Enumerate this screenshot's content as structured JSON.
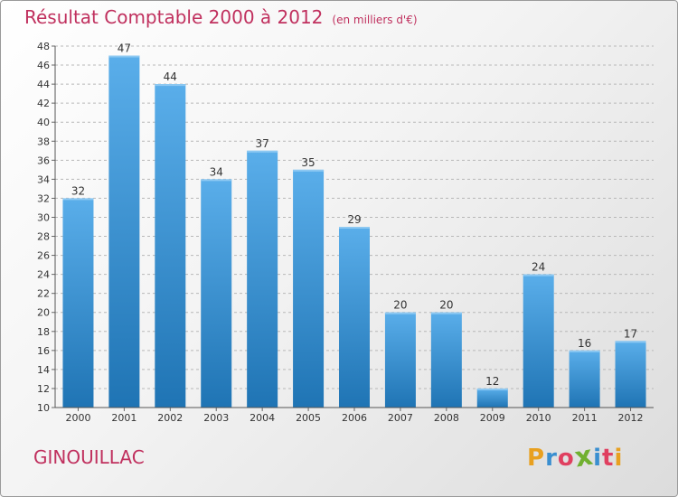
{
  "title": "Résultat Comptable 2000 à 2012",
  "subtitle": "(en milliers d'€)",
  "commune": "GINOUILLAC",
  "logo": {
    "letters": [
      "P",
      "r",
      "o",
      "x",
      "i",
      "t",
      "i"
    ],
    "colors": [
      "#e8a020",
      "#3a8fd0",
      "#e04060",
      "#70b030",
      "#3a8fd0",
      "#e04060",
      "#e8a020"
    ]
  },
  "colors": {
    "bar_light": "#5aaeea",
    "bar_dark": "#1f74b4",
    "title": "#c0305e",
    "grid": "#b8b8b8"
  },
  "chart_data": {
    "type": "bar",
    "title": "Résultat Comptable 2000 à 2012",
    "subtitle": "(en milliers d'€)",
    "xlabel": "",
    "ylabel": "",
    "categories": [
      "2000",
      "2001",
      "2002",
      "2003",
      "2004",
      "2005",
      "2006",
      "2007",
      "2008",
      "2009",
      "2010",
      "2011",
      "2012"
    ],
    "values": [
      32,
      47,
      44,
      34,
      37,
      35,
      29,
      20,
      20,
      12,
      24,
      16,
      17
    ],
    "ylim": [
      10,
      48
    ],
    "yticks": [
      10,
      12,
      14,
      16,
      18,
      20,
      22,
      24,
      26,
      28,
      30,
      32,
      34,
      36,
      38,
      40,
      42,
      44,
      46,
      48
    ],
    "grid": true
  }
}
